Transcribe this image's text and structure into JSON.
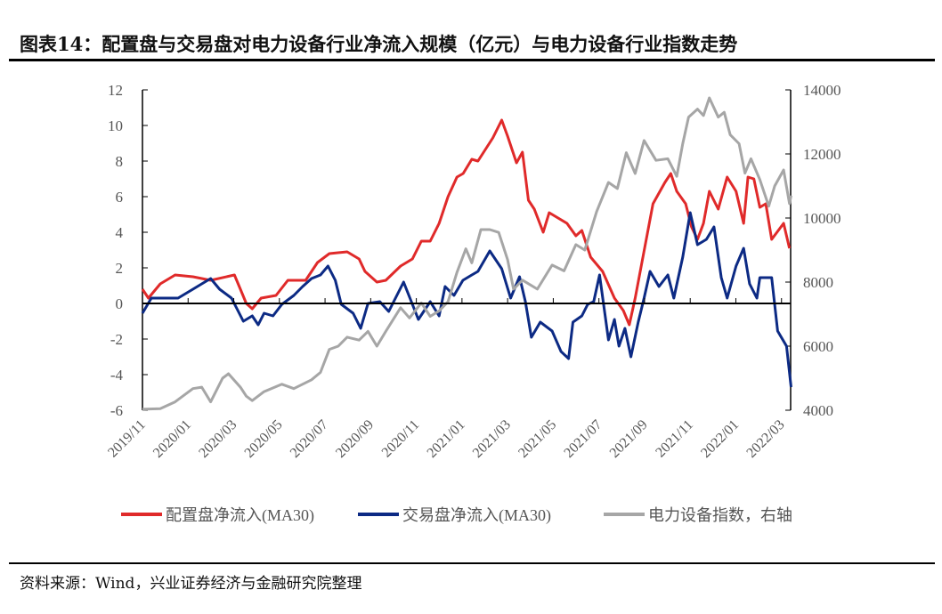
{
  "title": "图表14：配置盘与交易盘对电力设备行业净流入规模（亿元）与电力设备行业指数走势",
  "source": "资料来源：Wind，兴业证券经济与金融研究院整理",
  "chart_data": {
    "type": "line",
    "title": "配置盘与交易盘对电力设备行业净流入规模（亿元）与电力设备行业指数走势",
    "x_unit": "months since 2019/11",
    "xlim": [
      0,
      28.4
    ],
    "x_ticks": [
      {
        "m": 0,
        "label": "2019/11"
      },
      {
        "m": 2,
        "label": "2020/01"
      },
      {
        "m": 4,
        "label": "2020/03"
      },
      {
        "m": 6,
        "label": "2020/05"
      },
      {
        "m": 8,
        "label": "2020/07"
      },
      {
        "m": 10,
        "label": "2020/09"
      },
      {
        "m": 12,
        "label": "2020/11"
      },
      {
        "m": 14,
        "label": "2021/01"
      },
      {
        "m": 16,
        "label": "2021/03"
      },
      {
        "m": 18,
        "label": "2021/05"
      },
      {
        "m": 20,
        "label": "2021/07"
      },
      {
        "m": 22,
        "label": "2021/09"
      },
      {
        "m": 24,
        "label": "2021/11"
      },
      {
        "m": 26,
        "label": "2022/01"
      },
      {
        "m": 28,
        "label": "2022/03"
      }
    ],
    "y_left": {
      "lim": [
        -6,
        12
      ],
      "ticks": [
        "12",
        "10",
        "8",
        "6",
        "4",
        "2",
        "0",
        "-2",
        "-4",
        "-6"
      ],
      "values": [
        12,
        10,
        8,
        6,
        4,
        2,
        0,
        -2,
        -4,
        -6
      ]
    },
    "y_right": {
      "lim": [
        4000,
        14000
      ],
      "ticks": [
        "14000",
        "12000",
        "10000",
        "8000",
        "6000",
        "4000"
      ],
      "values": [
        14000,
        12000,
        10000,
        8000,
        6000,
        4000
      ]
    },
    "legend_position": "bottom",
    "series": [
      {
        "name": "配置盘净流入(MA30)",
        "axis": "left",
        "color": "#e02a2a",
        "points": [
          [
            0,
            0.8
          ],
          [
            0.26,
            0.3
          ],
          [
            0.78,
            1.1
          ],
          [
            1.43,
            1.6
          ],
          [
            2.21,
            1.5
          ],
          [
            2.99,
            1.3
          ],
          [
            4.03,
            1.6
          ],
          [
            4.29,
            0.8
          ],
          [
            4.55,
            0
          ],
          [
            4.81,
            -0.3
          ],
          [
            5.2,
            0.3
          ],
          [
            5.85,
            0.45
          ],
          [
            6.37,
            1.3
          ],
          [
            7.15,
            1.3
          ],
          [
            7.67,
            2.3
          ],
          [
            8.19,
            2.8
          ],
          [
            8.97,
            2.9
          ],
          [
            9.49,
            2.5
          ],
          [
            9.75,
            1.8
          ],
          [
            10.27,
            1.2
          ],
          [
            10.66,
            1.3
          ],
          [
            11.31,
            2.1
          ],
          [
            11.83,
            2.5
          ],
          [
            12.22,
            3.5
          ],
          [
            12.61,
            3.5
          ],
          [
            13.0,
            4.5
          ],
          [
            13.39,
            6
          ],
          [
            13.78,
            7.1
          ],
          [
            14.05,
            7.3
          ],
          [
            14.43,
            8.1
          ],
          [
            14.7,
            8.0
          ],
          [
            15.35,
            9.3
          ],
          [
            15.74,
            10.3
          ],
          [
            16.0,
            9.4
          ],
          [
            16.39,
            7.9
          ],
          [
            16.65,
            8.5
          ],
          [
            16.91,
            5.8
          ],
          [
            17.17,
            5.3
          ],
          [
            17.56,
            4.0
          ],
          [
            17.82,
            5.1
          ],
          [
            18.6,
            4.5
          ],
          [
            18.99,
            3.8
          ],
          [
            19.25,
            4.1
          ],
          [
            19.64,
            2.6
          ],
          [
            20.16,
            1.8
          ],
          [
            20.68,
            0.3
          ],
          [
            21.07,
            -0.4
          ],
          [
            21.33,
            -1.2
          ],
          [
            21.59,
            0.3
          ],
          [
            21.98,
            2.95
          ],
          [
            22.37,
            5.6
          ],
          [
            22.89,
            6.8
          ],
          [
            23.15,
            7.3
          ],
          [
            23.41,
            6.3
          ],
          [
            23.8,
            5.6
          ],
          [
            24.06,
            4.3
          ],
          [
            24.32,
            3.6
          ],
          [
            24.58,
            4.5
          ],
          [
            24.84,
            6.3
          ],
          [
            25.23,
            5.3
          ],
          [
            25.62,
            7.1
          ],
          [
            26.01,
            6.3
          ],
          [
            26.34,
            4.5
          ],
          [
            26.53,
            7.1
          ],
          [
            26.79,
            7.0
          ],
          [
            27.05,
            5.4
          ],
          [
            27.31,
            5.6
          ],
          [
            27.57,
            3.6
          ],
          [
            28.09,
            4.5
          ],
          [
            28.35,
            3.1
          ]
        ]
      },
      {
        "name": "交易盘净流入(MA30)",
        "axis": "left",
        "color": "#0c2a84",
        "points": [
          [
            0,
            -0.55
          ],
          [
            0.39,
            0.3
          ],
          [
            0.91,
            0.3
          ],
          [
            1.56,
            0.3
          ],
          [
            2.21,
            0.8
          ],
          [
            2.6,
            1.1
          ],
          [
            2.99,
            1.4
          ],
          [
            3.38,
            0.8
          ],
          [
            3.9,
            0.3
          ],
          [
            4.42,
            -1.0
          ],
          [
            4.81,
            -0.7
          ],
          [
            5.07,
            -1.2
          ],
          [
            5.33,
            -0.55
          ],
          [
            5.72,
            -0.7
          ],
          [
            6.11,
            -0.05
          ],
          [
            6.63,
            0.45
          ],
          [
            7.02,
            0.95
          ],
          [
            7.41,
            1.4
          ],
          [
            7.8,
            1.6
          ],
          [
            8.13,
            2.1
          ],
          [
            8.45,
            1.3
          ],
          [
            8.71,
            -0.05
          ],
          [
            9.23,
            -0.55
          ],
          [
            9.56,
            -1.4
          ],
          [
            9.88,
            0
          ],
          [
            10.4,
            0.1
          ],
          [
            10.79,
            -0.45
          ],
          [
            11.44,
            1.2
          ],
          [
            11.83,
            -0.05
          ],
          [
            12.09,
            -0.9
          ],
          [
            12.61,
            0.1
          ],
          [
            13.0,
            -0.7
          ],
          [
            13.26,
            0.95
          ],
          [
            13.65,
            0.45
          ],
          [
            14.04,
            1.3
          ],
          [
            14.43,
            1.6
          ],
          [
            14.7,
            1.8
          ],
          [
            15.22,
            2.95
          ],
          [
            15.74,
            1.95
          ],
          [
            16.13,
            0.3
          ],
          [
            16.52,
            1.5
          ],
          [
            16.78,
            0.1
          ],
          [
            17.04,
            -1.9
          ],
          [
            17.43,
            -1.05
          ],
          [
            17.95,
            -1.55
          ],
          [
            18.34,
            -2.7
          ],
          [
            18.67,
            -3.1
          ],
          [
            18.86,
            -1.05
          ],
          [
            19.25,
            -0.7
          ],
          [
            19.51,
            -0.05
          ],
          [
            19.77,
            0.1
          ],
          [
            20.03,
            1.6
          ],
          [
            20.42,
            -2.05
          ],
          [
            20.68,
            -0.9
          ],
          [
            20.88,
            -2.4
          ],
          [
            21.14,
            -1.4
          ],
          [
            21.4,
            -3.0
          ],
          [
            21.72,
            -1.05
          ],
          [
            21.98,
            0.3
          ],
          [
            22.24,
            1.8
          ],
          [
            22.63,
            0.95
          ],
          [
            23.02,
            1.6
          ],
          [
            23.28,
            0.3
          ],
          [
            23.67,
            2.6
          ],
          [
            24.0,
            5.1
          ],
          [
            24.32,
            3.3
          ],
          [
            24.71,
            3.6
          ],
          [
            25.04,
            4.3
          ],
          [
            25.36,
            1.45
          ],
          [
            25.62,
            0.3
          ],
          [
            26.01,
            2.1
          ],
          [
            26.34,
            3.1
          ],
          [
            26.6,
            1.1
          ],
          [
            26.92,
            0.3
          ],
          [
            27.05,
            1.45
          ],
          [
            27.57,
            1.45
          ],
          [
            27.83,
            -1.55
          ],
          [
            28.22,
            -2.4
          ],
          [
            28.42,
            -4.7
          ]
        ]
      },
      {
        "name": "电力设备指数，右轴",
        "axis": "right",
        "color": "#a6a6a6",
        "points": [
          [
            0,
            4030
          ],
          [
            0.78,
            4050
          ],
          [
            1.43,
            4260
          ],
          [
            2.21,
            4675
          ],
          [
            2.6,
            4720
          ],
          [
            2.99,
            4260
          ],
          [
            3.51,
            5000
          ],
          [
            3.77,
            5140
          ],
          [
            4.29,
            4720
          ],
          [
            4.55,
            4440
          ],
          [
            4.81,
            4300
          ],
          [
            5.33,
            4580
          ],
          [
            6.11,
            4810
          ],
          [
            6.63,
            4675
          ],
          [
            7.41,
            4950
          ],
          [
            7.8,
            5180
          ],
          [
            8.19,
            5900
          ],
          [
            8.58,
            6000
          ],
          [
            8.97,
            6280
          ],
          [
            9.49,
            6190
          ],
          [
            9.88,
            6460
          ],
          [
            10.27,
            6000
          ],
          [
            10.66,
            6460
          ],
          [
            11.31,
            7200
          ],
          [
            11.7,
            6880
          ],
          [
            12.22,
            7350
          ],
          [
            12.61,
            6930
          ],
          [
            13.0,
            7100
          ],
          [
            13.39,
            7390
          ],
          [
            13.78,
            8300
          ],
          [
            14.17,
            9040
          ],
          [
            14.43,
            8600
          ],
          [
            14.83,
            9640
          ],
          [
            15.22,
            9640
          ],
          [
            15.61,
            9550
          ],
          [
            16.0,
            8700
          ],
          [
            16.26,
            7780
          ],
          [
            16.65,
            8060
          ],
          [
            17.3,
            7780
          ],
          [
            17.95,
            8530
          ],
          [
            18.47,
            8350
          ],
          [
            18.99,
            9170
          ],
          [
            19.38,
            9000
          ],
          [
            19.9,
            10200
          ],
          [
            20.42,
            11110
          ],
          [
            20.81,
            10920
          ],
          [
            21.2,
            12040
          ],
          [
            21.59,
            11390
          ],
          [
            21.98,
            12420
          ],
          [
            22.5,
            11800
          ],
          [
            23.02,
            11850
          ],
          [
            23.41,
            11300
          ],
          [
            23.67,
            12320
          ],
          [
            23.93,
            13150
          ],
          [
            24.32,
            13400
          ],
          [
            24.58,
            13200
          ],
          [
            24.84,
            13750
          ],
          [
            25.23,
            13150
          ],
          [
            25.49,
            13300
          ],
          [
            25.75,
            12600
          ],
          [
            26.14,
            12320
          ],
          [
            26.4,
            11400
          ],
          [
            26.66,
            11850
          ],
          [
            27.05,
            11200
          ],
          [
            27.44,
            10370
          ],
          [
            27.7,
            11000
          ],
          [
            28.09,
            11500
          ],
          [
            28.35,
            10450
          ],
          [
            28.42,
            10700
          ]
        ]
      }
    ]
  }
}
